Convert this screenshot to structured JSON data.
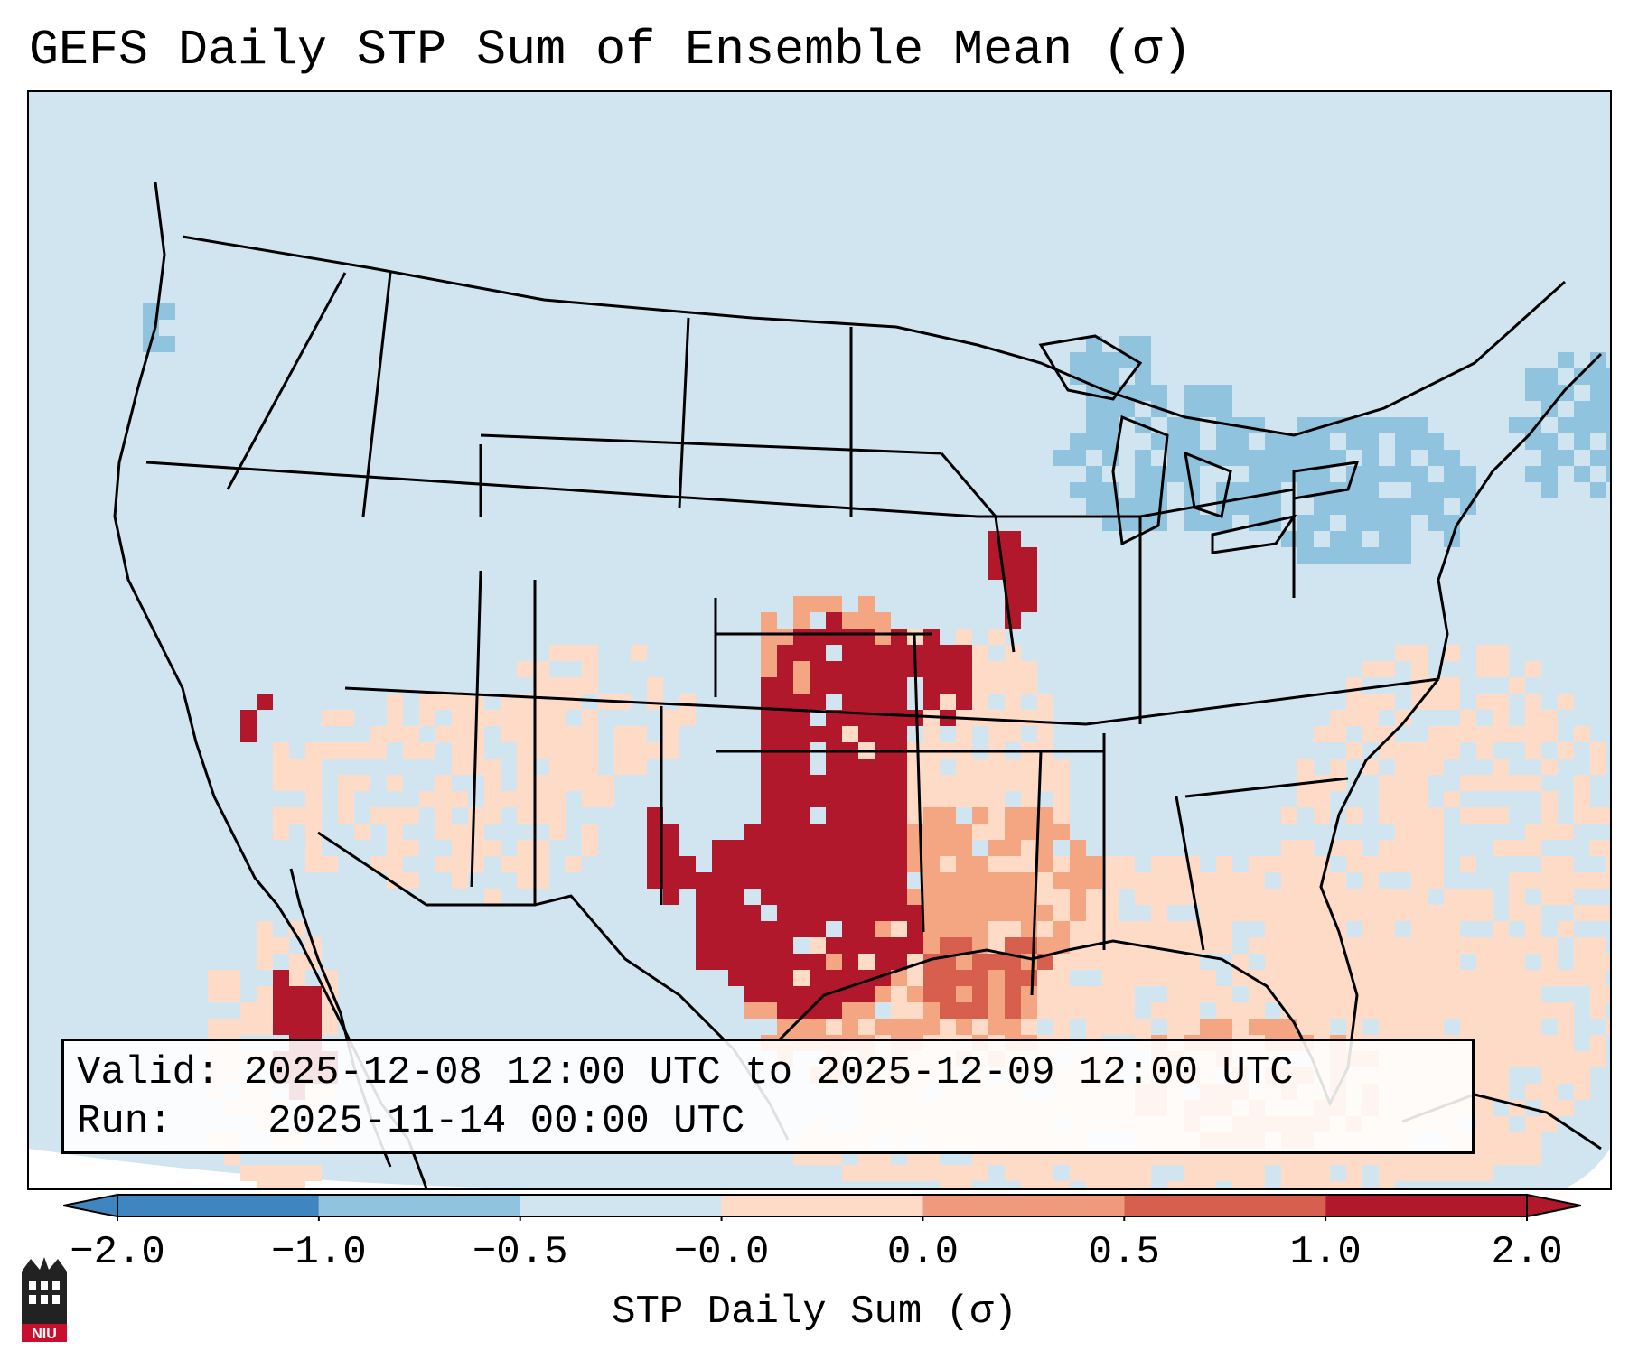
{
  "title": "GEFS Daily STP Sum of Ensemble Mean (σ)",
  "info": {
    "valid_label": "Valid:",
    "valid_text": "2025-12-08 12:00 UTC to 2025-12-09 12:00 UTC",
    "run_label": "Run:",
    "run_text": "2025-11-14 00:00 UTC"
  },
  "colorbar": {
    "label": "STP Daily Sum (σ)",
    "ticks": [
      "−2.0",
      "−1.0",
      "−0.5",
      "−0.0",
      "0.0",
      "0.5",
      "1.0",
      "2.0"
    ],
    "colors": [
      "#3f86c0",
      "#90c3de",
      "#d1e5f0",
      "#f7f7f7",
      "#fddbc7",
      "#f09a7d",
      "#d6604d",
      "#b2182b"
    ]
  },
  "map": {
    "background_color": "#d1e5f0",
    "regions": [
      {
        "name": "southern-plains-maximum",
        "level": "2.0"
      },
      {
        "name": "lower-mississippi-valley",
        "level": "1.0"
      },
      {
        "name": "gulf-coast",
        "level": "0.5"
      },
      {
        "name": "great-lakes-northeast",
        "level": "-0.5"
      }
    ]
  },
  "logo": {
    "text": "NIU"
  }
}
